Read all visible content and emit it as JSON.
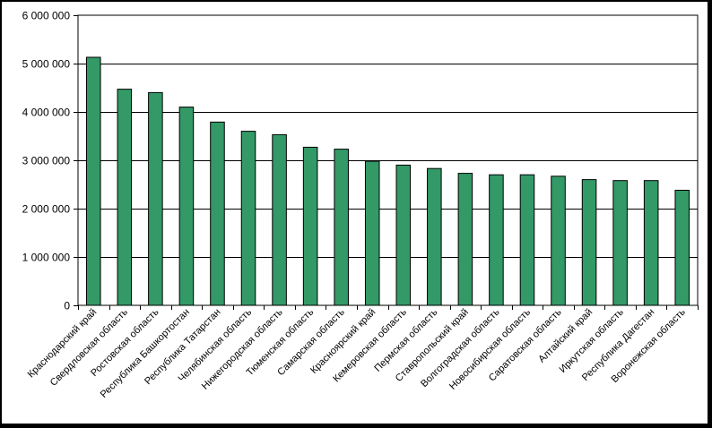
{
  "colors": {
    "bar": "#339966",
    "bar_edge": "#000000",
    "grid": "#000000",
    "background": "#ffffff"
  },
  "chart_data": {
    "type": "bar",
    "title": "",
    "xlabel": "",
    "ylabel": "",
    "ylim": [
      0,
      6000000
    ],
    "yticks": [
      0,
      1000000,
      2000000,
      3000000,
      4000000,
      5000000,
      6000000
    ],
    "ytick_labels": [
      "0",
      "1 000 000",
      "2 000 000",
      "3 000 000",
      "4 000 000",
      "5 000 000",
      "6 000 000"
    ],
    "grid": true,
    "legend": "none",
    "categories": [
      "Краснодарский край",
      "Свердловская область",
      "Ростовская область",
      "Республика Башкортостан",
      "Республика Татарстан",
      "Челябинская область",
      "Нижегородская область",
      "Тюменская область",
      "Самарская область",
      "Красноярский край",
      "Кемеровская область",
      "Пермская область",
      "Ставропольский край",
      "Волгоградская область",
      "Новосибирская область",
      "Саратовская область",
      "Алтайский край",
      "Иркутская область",
      "Республика Дагестан",
      "Воронежская область"
    ],
    "values": [
      5130000,
      4470000,
      4400000,
      4100000,
      3790000,
      3600000,
      3530000,
      3270000,
      3230000,
      2980000,
      2900000,
      2830000,
      2730000,
      2700000,
      2700000,
      2670000,
      2600000,
      2580000,
      2580000,
      2380000
    ]
  }
}
